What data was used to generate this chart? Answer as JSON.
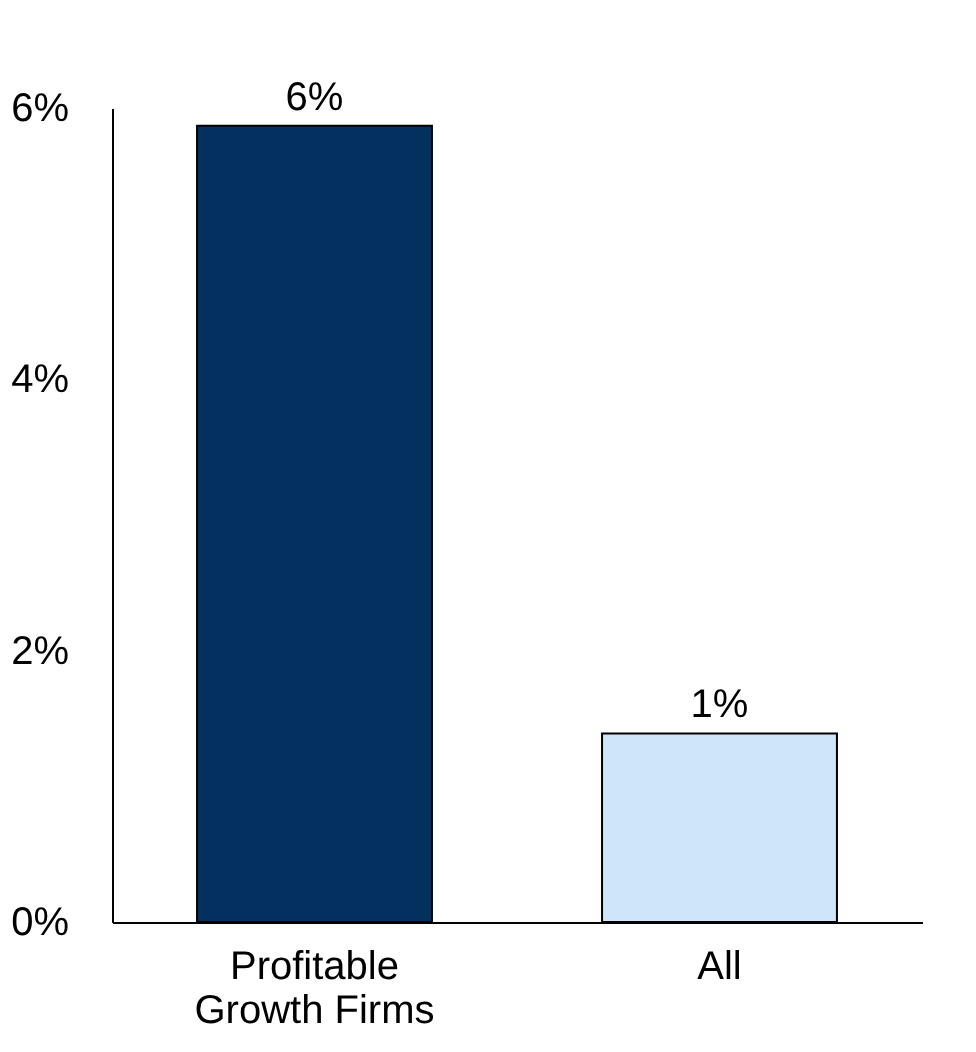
{
  "chart_data": {
    "type": "bar",
    "categories": [
      "Profitable\nGrowth Firms",
      "All"
    ],
    "values": [
      5.87,
      1.39
    ],
    "colors": [
      "#04305f",
      "#cfe5f9"
    ],
    "value_labels": [
      "6%",
      "1%"
    ],
    "ylim": [
      0,
      6
    ],
    "yticks": [
      {
        "value": 0,
        "label": "0%"
      },
      {
        "value": 2,
        "label": "2%"
      },
      {
        "value": 4,
        "label": "4%"
      },
      {
        "value": 6,
        "label": "6%"
      }
    ],
    "grid": false
  }
}
